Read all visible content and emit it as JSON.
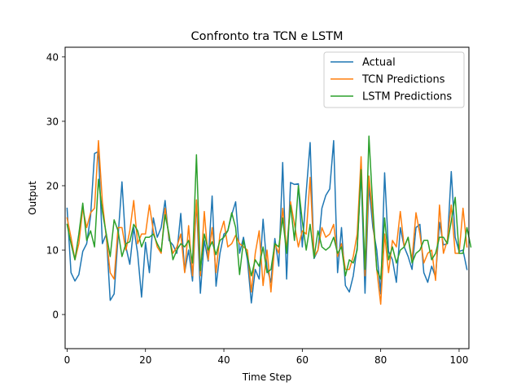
{
  "chart_data": {
    "type": "line",
    "title": "Confronto tra TCN e LSTM",
    "xlabel": "Time Step",
    "ylabel": "Output",
    "xlim": [
      -0.5,
      102.5
    ],
    "ylim": [
      -5.3,
      41.5
    ],
    "xticks": [
      0,
      20,
      40,
      60,
      80,
      100
    ],
    "yticks": [
      0,
      10,
      20,
      30,
      40
    ],
    "legend_position": "top-right",
    "grid": false,
    "series": [
      {
        "name": "Actual",
        "color": "#1f77b4",
        "values": [
          16.5,
          6.5,
          5.2,
          6.2,
          9.8,
          11.0,
          15.3,
          25.0,
          25.3,
          11.0,
          12.5,
          2.2,
          3.2,
          12.0,
          20.6,
          10.5,
          7.8,
          13.5,
          9.5,
          2.7,
          11.2,
          6.5,
          15.0,
          12.0,
          13.5,
          17.7,
          11.5,
          10.8,
          9.5,
          15.7,
          6.6,
          10.0,
          5.2,
          17.5,
          3.3,
          11.5,
          8.3,
          18.4,
          4.4,
          9.5,
          12.5,
          13.0,
          15.5,
          17.5,
          9.5,
          12.0,
          8.5,
          1.8,
          7.0,
          5.5,
          14.8,
          7.2,
          5.0,
          11.8,
          7.5,
          23.6,
          5.5,
          20.5,
          20.2,
          20.3,
          10.5,
          19.0,
          26.7,
          8.7,
          10.0,
          16.5,
          18.5,
          19.5,
          27.0,
          6.5,
          13.5,
          4.5,
          3.5,
          6.0,
          10.5,
          22.0,
          3.3,
          20.0,
          13.5,
          10.0,
          3.2,
          22.0,
          9.8,
          8.5,
          5.0,
          13.5,
          10.5,
          9.0,
          7.0,
          13.5,
          14.0,
          6.5,
          5.0,
          7.5,
          5.8,
          14.3,
          10.8,
          11.0,
          22.2,
          12.0,
          9.8,
          10.0,
          7.0
        ]
      },
      {
        "name": "TCN Predictions",
        "color": "#ff7f0e",
        "values": [
          15.0,
          12.0,
          8.5,
          11.0,
          16.5,
          13.5,
          15.8,
          16.5,
          27.0,
          17.5,
          12.0,
          6.5,
          5.5,
          13.5,
          13.5,
          10.0,
          13.0,
          17.7,
          11.0,
          12.5,
          12.5,
          17.0,
          13.0,
          10.5,
          9.5,
          16.5,
          12.0,
          9.5,
          10.5,
          12.5,
          6.5,
          13.8,
          6.0,
          17.8,
          6.0,
          16.0,
          8.5,
          13.5,
          6.5,
          12.5,
          14.5,
          10.5,
          11.0,
          12.3,
          11.0,
          10.5,
          10.0,
          3.5,
          9.5,
          13.0,
          4.5,
          10.0,
          3.5,
          11.0,
          9.5,
          16.5,
          10.0,
          17.5,
          14.0,
          10.5,
          13.0,
          12.5,
          21.3,
          9.0,
          10.0,
          13.5,
          12.0,
          12.5,
          14.0,
          9.0,
          11.0,
          7.0,
          7.0,
          9.0,
          12.5,
          24.5,
          6.0,
          21.5,
          15.0,
          7.0,
          1.6,
          12.5,
          6.5,
          11.5,
          10.5,
          16.0,
          10.5,
          12.0,
          8.5,
          15.8,
          12.5,
          8.0,
          9.5,
          10.0,
          5.3,
          17.0,
          9.5,
          11.5,
          17.0,
          9.5,
          9.5,
          16.5,
          10.5
        ]
      },
      {
        "name": "LSTM Predictions",
        "color": "#2ca02c",
        "values": [
          14.0,
          11.0,
          8.5,
          12.5,
          17.3,
          11.5,
          13.0,
          10.5,
          21.0,
          16.0,
          12.5,
          9.0,
          14.7,
          13.0,
          9.0,
          11.0,
          11.3,
          14.0,
          13.0,
          10.5,
          12.0,
          12.0,
          12.5,
          11.0,
          9.8,
          15.5,
          12.5,
          8.5,
          10.0,
          11.0,
          10.5,
          11.5,
          8.0,
          24.8,
          6.8,
          12.5,
          10.0,
          11.3,
          9.3,
          11.5,
          12.0,
          13.0,
          15.8,
          13.5,
          6.2,
          11.5,
          9.0,
          6.0,
          8.5,
          7.5,
          10.5,
          6.5,
          7.0,
          11.0,
          10.5,
          15.0,
          9.5,
          17.0,
          11.5,
          20.0,
          14.5,
          10.0,
          14.0,
          8.8,
          13.0,
          10.5,
          10.0,
          10.5,
          12.0,
          9.5,
          10.5,
          6.0,
          8.5,
          8.0,
          10.0,
          22.5,
          7.0,
          27.7,
          16.5,
          7.0,
          5.5,
          15.0,
          8.5,
          10.5,
          8.0,
          10.0,
          10.5,
          12.0,
          8.0,
          9.5,
          10.0,
          11.5,
          11.5,
          8.5,
          9.5,
          12.0,
          12.0,
          11.0,
          14.5,
          18.2,
          9.5,
          9.5,
          13.5,
          10.5
        ]
      }
    ]
  }
}
